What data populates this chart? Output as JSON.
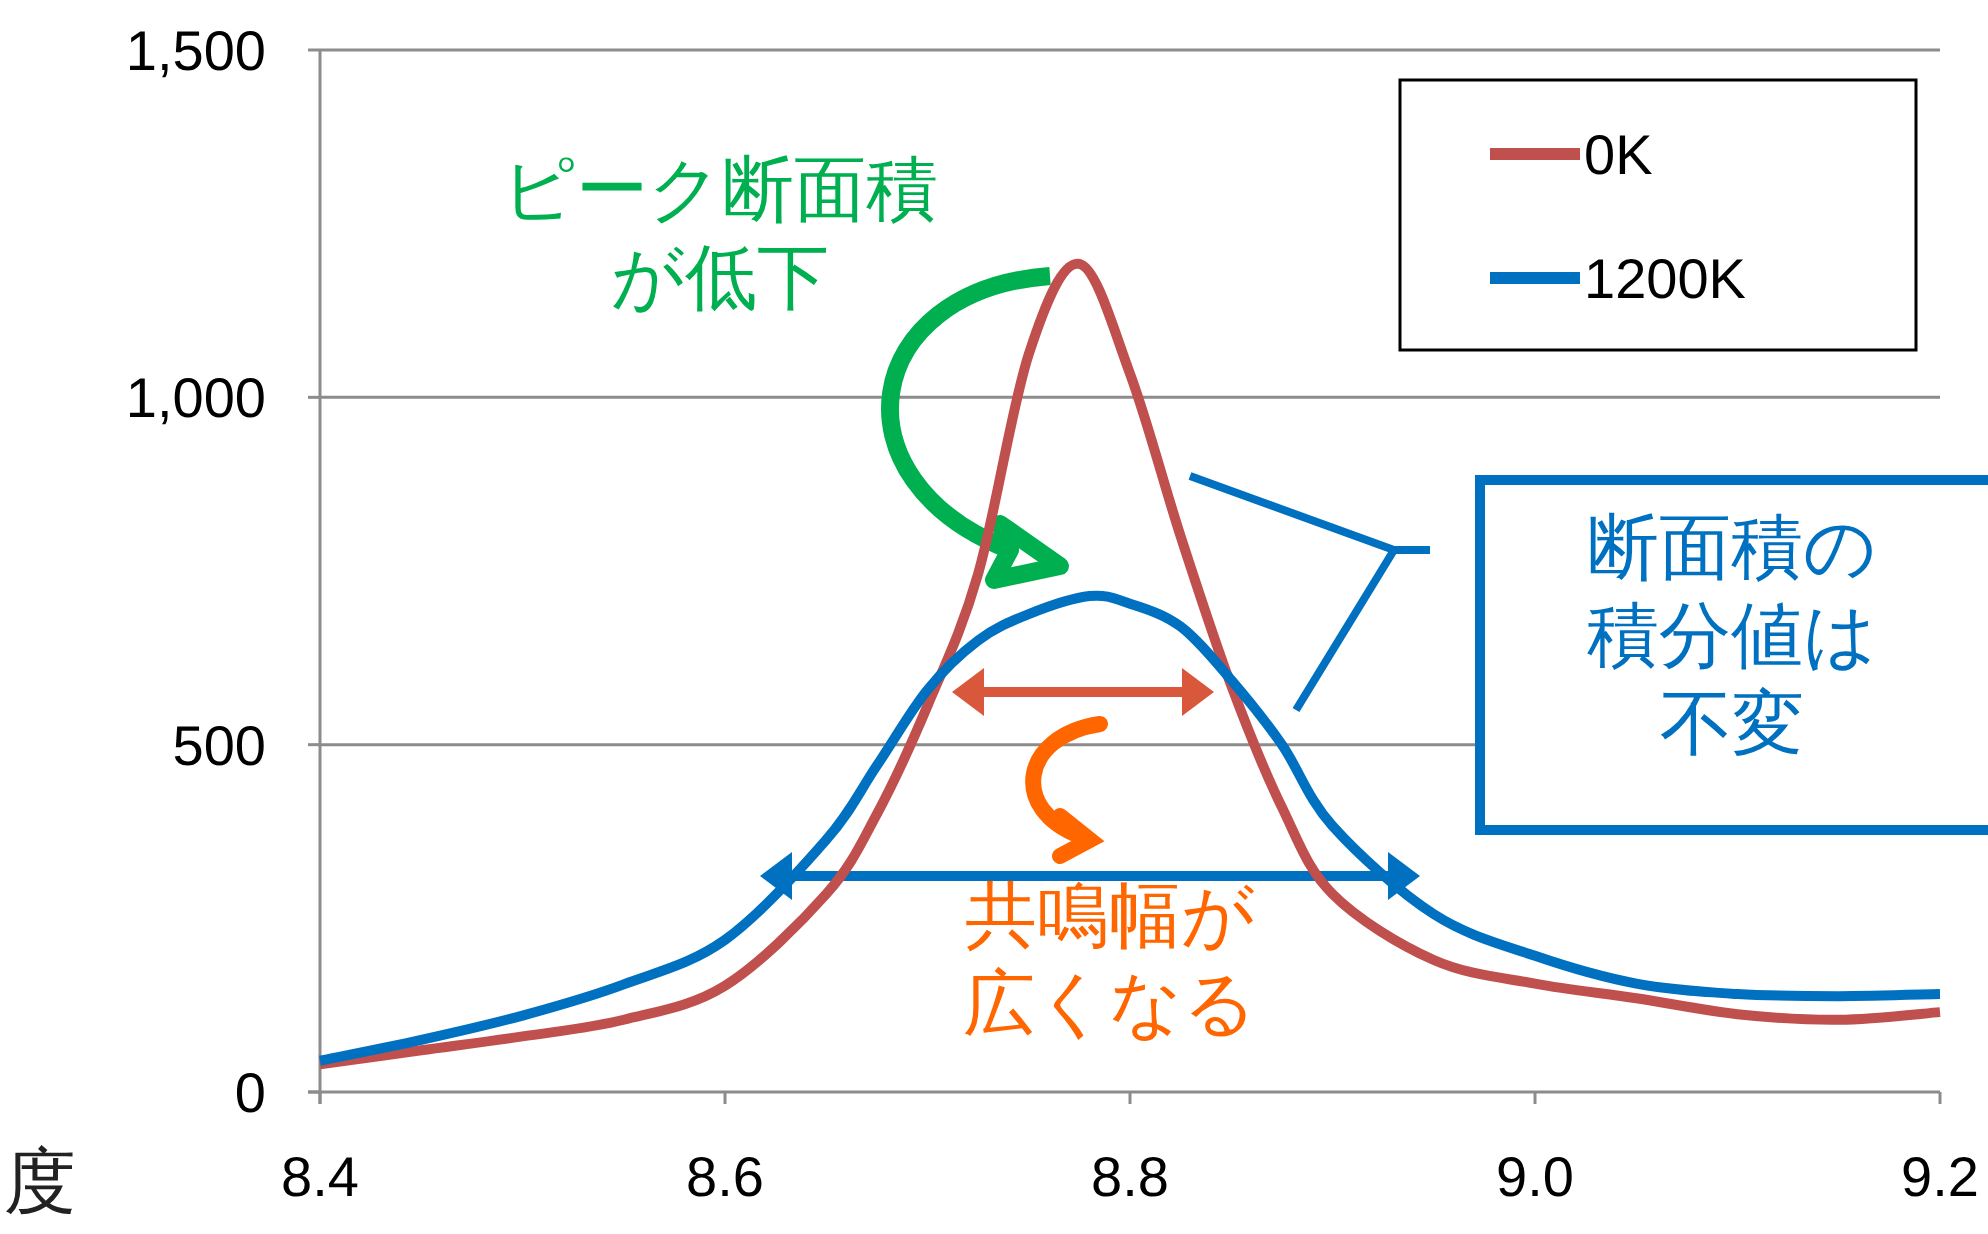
{
  "chart_data": {
    "type": "line",
    "xlabel": "度",
    "xlim": [
      8.4,
      9.2
    ],
    "xticks": [
      8.4,
      8.6,
      8.8,
      {
        "value": 9.0,
        "label": "9.0"
      },
      9.2
    ],
    "ylim": [
      0,
      1500
    ],
    "yticks": [
      0,
      500,
      {
        "value": 1000,
        "label": "1,000"
      },
      {
        "value": 1500,
        "label": "1,500"
      }
    ],
    "grid": "y",
    "legend": "top right",
    "marker": "none",
    "line_style": "solid",
    "series": [
      {
        "name": "0K",
        "color": "#c0504d",
        "x": [
          8.4,
          8.45,
          8.5,
          8.55,
          8.6,
          8.65,
          8.675,
          8.7,
          8.725,
          8.75,
          8.775,
          8.8,
          8.825,
          8.85,
          8.875,
          8.9,
          8.95,
          9.0,
          9.05,
          9.1,
          9.15,
          9.2
        ],
        "values": [
          40,
          60,
          80,
          104,
          153,
          285,
          400,
          556,
          746,
          1062,
          1192,
          1034,
          800,
          585,
          410,
          285,
          190,
          156,
          135,
          112,
          104,
          115
        ]
      },
      {
        "name": "1200K",
        "color": "#0070c0",
        "x": [
          8.4,
          8.45,
          8.5,
          8.55,
          8.6,
          8.65,
          8.675,
          8.7,
          8.725,
          8.75,
          8.78,
          8.8,
          8.825,
          8.85,
          8.875,
          8.9,
          8.95,
          9.0,
          9.05,
          9.1,
          9.15,
          9.2
        ],
        "values": [
          45,
          75,
          110,
          155,
          219,
          363,
          470,
          579,
          650,
          688,
          714,
          703,
          670,
          593,
          500,
          383,
          256,
          196,
          156,
          141,
          138,
          141
        ]
      }
    ],
    "annotations": [
      "ピーク断面積が低下",
      "断面積の積分値は不変",
      "共鳴幅が広くなる"
    ]
  }
}
